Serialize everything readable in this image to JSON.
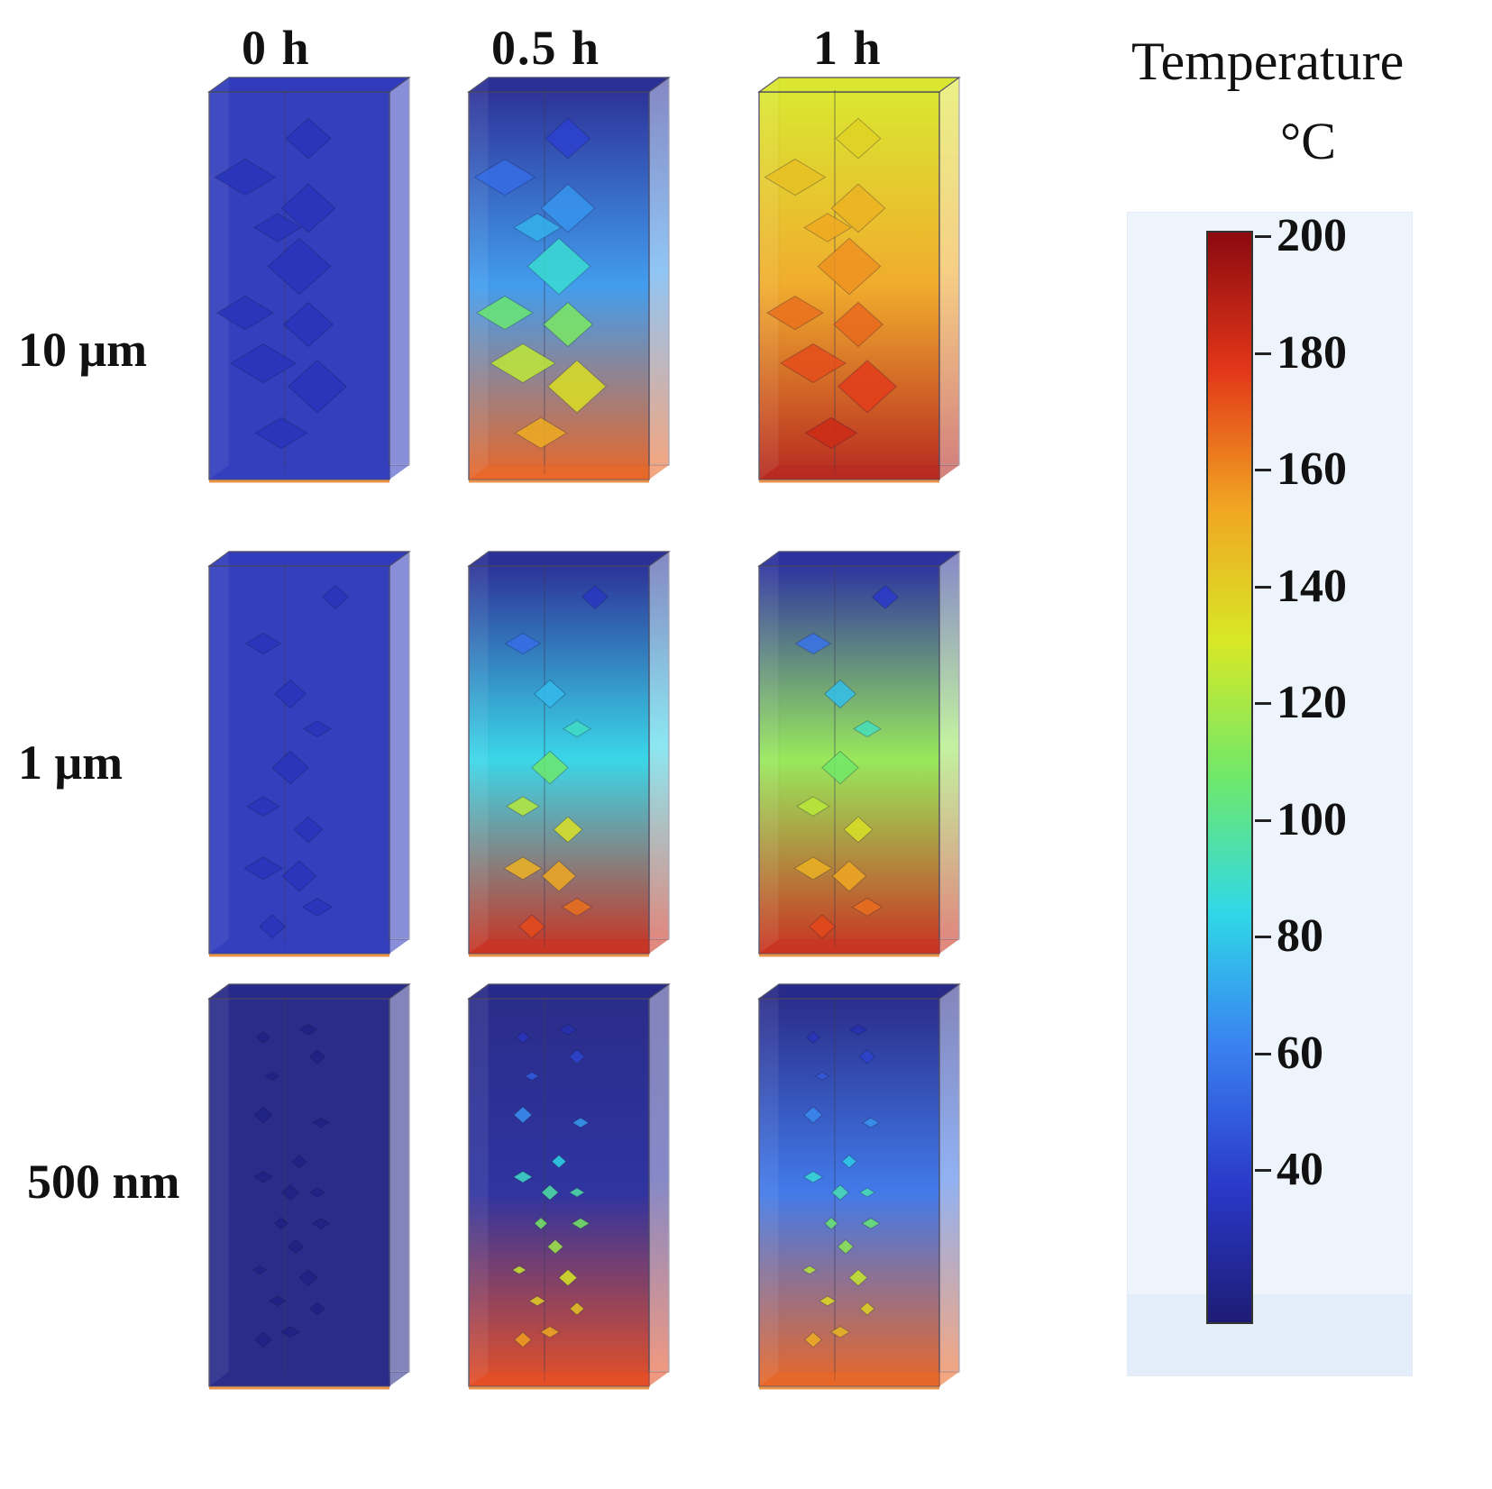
{
  "columns": [
    "0 h",
    "0.5 h",
    "1 h"
  ],
  "rows": [
    "10 μm",
    "1 μm",
    "500 nm"
  ],
  "legend": {
    "title": "Temperature",
    "unit": "°C",
    "ticks": [
      "200",
      "180",
      "160",
      "140",
      "120",
      "100",
      "80",
      "60",
      "40"
    ],
    "min": 30,
    "max": 205
  },
  "panels": [
    [
      {
        "top": 48,
        "mid": 48,
        "bottom": 48
      },
      {
        "top": 38,
        "mid": 80,
        "bottom": 175
      },
      {
        "top": 140,
        "mid": 160,
        "bottom": 195
      }
    ],
    [
      {
        "top": 48,
        "mid": 48,
        "bottom": 48
      },
      {
        "top": 38,
        "mid": 95,
        "bottom": 190
      },
      {
        "top": 40,
        "mid": 125,
        "bottom": 190
      }
    ],
    [
      {
        "top": 34,
        "mid": 34,
        "bottom": 34
      },
      {
        "top": 34,
        "mid": 40,
        "bottom": 180
      },
      {
        "top": 34,
        "mid": 70,
        "bottom": 175
      }
    ]
  ],
  "colormap_stops": [
    "#1d1c74",
    "#2a39c9",
    "#3a7ff0",
    "#2fd8e8",
    "#6fe86a",
    "#d8e826",
    "#f1a422",
    "#e23619",
    "#8c0a10"
  ]
}
